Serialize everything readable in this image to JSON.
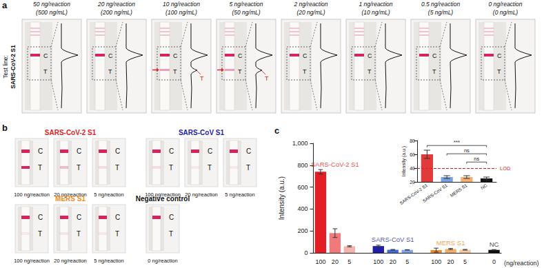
{
  "panel_a": {
    "panel_label": "a",
    "row_label": [
      "Test line:",
      "SARS-CoV-2 S1"
    ],
    "strips": [
      {
        "title": "50 ng/reaction",
        "subtitle": "(500 ng/mL)",
        "labels": [
          "C",
          "T"
        ]
      },
      {
        "title": "20 ng/reaction",
        "subtitle": "(200 ng/mL)",
        "labels": [
          "C",
          "T"
        ]
      },
      {
        "title": "10 ng/reaction",
        "subtitle": "(100 ng/mL)",
        "labels": [
          "C",
          "T"
        ],
        "profile_label": "T"
      },
      {
        "title": "5 ng/reaction",
        "subtitle": "(50 ng/mL)",
        "labels": [
          "C",
          "T"
        ],
        "profile_label": "T"
      },
      {
        "title": "2 ng/reaction",
        "subtitle": "(20 ng/mL)",
        "labels": [
          "C",
          "T"
        ]
      },
      {
        "title": "1 ng/reaction",
        "subtitle": "(10 ng/mL)",
        "labels": [
          "C",
          "T"
        ]
      },
      {
        "title": "0.5 ng/reaction",
        "subtitle": "(5 ng/mL)",
        "labels": [
          "C",
          "T"
        ]
      },
      {
        "title": "0 ng/reaction",
        "subtitle": "(0 ng/mL)",
        "labels": [
          "C",
          "T"
        ]
      }
    ]
  },
  "panel_b": {
    "panel_label": "b",
    "groups": [
      {
        "title": "SARS-CoV-2 S1",
        "color": "#e31e24",
        "labels": [
          "C",
          "T"
        ],
        "strips": [
          "100 ng/reaction",
          "20 ng/reaction",
          "5 ng/reaction"
        ]
      },
      {
        "title": "SARS-CoV S1",
        "color": "#1f1fa8",
        "labels": [
          "C",
          "T"
        ],
        "strips": [
          "100 ng/reaction",
          "20 ng/reaction",
          "5 ng/reaction"
        ]
      },
      {
        "title": "MERS S1",
        "color": "#f28c1e",
        "labels": [
          "C",
          "T"
        ],
        "strips": [
          "100 ng/reaction",
          "20 ng/reaction",
          "5 ng/reaction"
        ]
      },
      {
        "title": "Negative control",
        "color": "#111111",
        "labels": [
          "C",
          "T"
        ],
        "strips": [
          "0 ng/reaction"
        ]
      }
    ]
  },
  "panel_c": {
    "panel_label": "c"
  },
  "chart_data": [
    {
      "type": "bar",
      "ylabel": "Intensity (a.u.)",
      "xlabel": "(ng/reaction)",
      "categories": [
        "100",
        "20",
        "5",
        null,
        "100",
        "20",
        "5",
        null,
        "100",
        "20",
        "5",
        null,
        "0"
      ],
      "ylim": [
        0,
        1000
      ],
      "yticks": [
        0,
        200,
        400,
        600,
        800,
        1000
      ],
      "grid": false,
      "series": [
        {
          "name": "SARS-CoV-2 S1",
          "color": "#e31e24",
          "colors": [
            "#e31e24",
            "#f07a7a",
            "#f5b3ae",
            null,
            null,
            null,
            null,
            null,
            null,
            null,
            null,
            null,
            null
          ],
          "values": [
            740,
            180,
            60,
            null,
            null,
            null,
            null,
            null,
            null,
            null,
            null,
            null,
            null
          ],
          "errors": [
            20,
            40,
            5,
            null,
            null,
            null,
            null,
            null,
            null,
            null,
            null,
            null,
            null
          ]
        },
        {
          "name": "SARS-CoV S1",
          "color": "#1f1fa8",
          "colors": [
            null,
            null,
            null,
            null,
            "#1f1fa8",
            "#4169d8",
            "#7da4e8",
            null,
            null,
            null,
            null,
            null,
            null
          ],
          "values": [
            null,
            null,
            null,
            null,
            62,
            28,
            27,
            null,
            null,
            null,
            null,
            null,
            null
          ],
          "errors": [
            null,
            null,
            null,
            null,
            8,
            3,
            2,
            null,
            null,
            null,
            null,
            null,
            null
          ]
        },
        {
          "name": "MERS S1",
          "color": "#f28c1e",
          "colors": [
            null,
            null,
            null,
            null,
            null,
            null,
            null,
            null,
            "#f28c1e",
            "#f5ad63",
            "#f8c89c",
            null,
            null
          ],
          "values": [
            null,
            null,
            null,
            null,
            null,
            null,
            null,
            null,
            25,
            35,
            28,
            null,
            null
          ],
          "errors": [
            null,
            null,
            null,
            null,
            null,
            null,
            null,
            null,
            18,
            5,
            3,
            null,
            null
          ]
        },
        {
          "name": "NC",
          "color": "#111111",
          "colors": [
            null,
            null,
            null,
            null,
            null,
            null,
            null,
            null,
            null,
            null,
            null,
            null,
            "#111111"
          ],
          "values": [
            null,
            null,
            null,
            null,
            null,
            null,
            null,
            null,
            null,
            null,
            null,
            null,
            27
          ],
          "errors": [
            null,
            null,
            null,
            null,
            null,
            null,
            null,
            null,
            null,
            null,
            null,
            null,
            3
          ]
        }
      ]
    },
    {
      "type": "bar",
      "ylabel": "Intensity (a.u.)",
      "categories": [
        "SARS-CoV-2 S1",
        "SARS-CoV S1",
        "MERS S1",
        "NC"
      ],
      "values": [
        60,
        27,
        27,
        25
      ],
      "errors": [
        6,
        2,
        2,
        2
      ],
      "colors": [
        "#e03a3a",
        "#7aa0e0",
        "#f5b070",
        "#111111"
      ],
      "ylim": [
        20,
        80
      ],
      "yticks": [
        20,
        40,
        60,
        80
      ],
      "grid": false,
      "lod": {
        "value": 40,
        "label": "LOD",
        "color": "#e31e24",
        "line_style": "dashed"
      },
      "comparisons": [
        {
          "from": "SARS-CoV-2 S1",
          "to": "NC",
          "label": "***"
        },
        {
          "from": "SARS-CoV S1",
          "to": "NC",
          "label": "ns"
        },
        {
          "from": "MERS S1",
          "to": "NC",
          "label": "ns"
        }
      ]
    }
  ]
}
